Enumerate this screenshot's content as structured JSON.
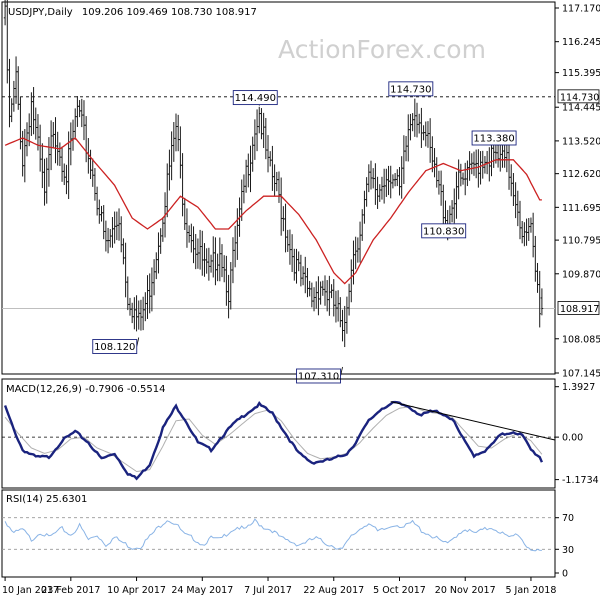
{
  "header": {
    "symbol_label": "USDJPY,Daily",
    "ohlc": "109.206 109.469 108.730 108.917"
  },
  "watermark": "ActionForex.com",
  "chart_data": {
    "type": "ohlc",
    "price_axis": {
      "ticks": [
        107.145,
        108.085,
        109.87,
        110.795,
        111.695,
        112.62,
        113.52,
        114.445,
        115.395,
        116.245,
        117.17
      ],
      "range": [
        107.145,
        117.17
      ]
    },
    "x_axis": {
      "labels": [
        "10 Jan 2017",
        "23 Feb 2017",
        "10 Apr 2017",
        "24 May 2017",
        "7 Jul 2017",
        "22 Aug 2017",
        "5 Oct 2017",
        "20 Nov 2017",
        "5 Jan 2018"
      ],
      "label_bars": [
        0,
        30,
        60,
        90,
        120,
        150,
        180,
        210,
        240
      ]
    },
    "horizontal_levels": [
      {
        "value": 114.73,
        "label": "114.730",
        "style": "dashed",
        "color": "#000000"
      },
      {
        "value": 108.917,
        "label": "108.917",
        "style": "solid",
        "color": "#bfbfbf"
      }
    ],
    "annotations": [
      {
        "label": "114.490",
        "value": 114.49,
        "bar": 116
      },
      {
        "label": "114.730",
        "value": 114.73,
        "bar": 187
      },
      {
        "label": "113.380",
        "value": 113.38,
        "bar": 225
      },
      {
        "label": "110.830",
        "value": 110.83,
        "bar": 202
      },
      {
        "label": "108.120",
        "value": 108.12,
        "bar": 61
      },
      {
        "label": "107.310",
        "value": 107.31,
        "bar": 154
      }
    ],
    "price_keypoints": [
      [
        0,
        116.9
      ],
      [
        2,
        114.0
      ],
      [
        5,
        115.2
      ],
      [
        8,
        113.0
      ],
      [
        12,
        114.6
      ],
      [
        18,
        112.0
      ],
      [
        22,
        113.9
      ],
      [
        28,
        112.6
      ],
      [
        33,
        114.4
      ],
      [
        40,
        112.6
      ],
      [
        46,
        110.6
      ],
      [
        52,
        111.4
      ],
      [
        56,
        109.3
      ],
      [
        61,
        108.5
      ],
      [
        65,
        109.2
      ],
      [
        70,
        110.8
      ],
      [
        74,
        112.4
      ],
      [
        78,
        113.9
      ],
      [
        82,
        111.5
      ],
      [
        87,
        110.6
      ],
      [
        93,
        109.8
      ],
      [
        98,
        110.6
      ],
      [
        102,
        109.4
      ],
      [
        106,
        111.0
      ],
      [
        110,
        112.6
      ],
      [
        114,
        113.9
      ],
      [
        116,
        114.3
      ],
      [
        120,
        112.8
      ],
      [
        124,
        112.2
      ],
      [
        130,
        110.6
      ],
      [
        135,
        109.7
      ],
      [
        140,
        109.2
      ],
      [
        144,
        109.6
      ],
      [
        148,
        109.2
      ],
      [
        152,
        108.8
      ],
      [
        154,
        108.0
      ],
      [
        158,
        110.2
      ],
      [
        162,
        111.1
      ],
      [
        166,
        112.4
      ],
      [
        170,
        112.1
      ],
      [
        175,
        112.7
      ],
      [
        180,
        112.1
      ],
      [
        184,
        113.8
      ],
      [
        187,
        114.4
      ],
      [
        191,
        113.9
      ],
      [
        196,
        112.6
      ],
      [
        200,
        111.7
      ],
      [
        202,
        111.3
      ],
      [
        206,
        112.3
      ],
      [
        210,
        112.4
      ],
      [
        215,
        112.9
      ],
      [
        220,
        113.1
      ],
      [
        225,
        113.0
      ],
      [
        229,
        112.9
      ],
      [
        233,
        112.0
      ],
      [
        237,
        110.8
      ],
      [
        240,
        111.0
      ],
      [
        242,
        109.9
      ],
      [
        244,
        109.0
      ]
    ],
    "ma_keypoints": [
      [
        0,
        113.4
      ],
      [
        8,
        113.6
      ],
      [
        15,
        113.4
      ],
      [
        25,
        113.3
      ],
      [
        32,
        113.6
      ],
      [
        40,
        113.0
      ],
      [
        50,
        112.3
      ],
      [
        58,
        111.4
      ],
      [
        65,
        111.1
      ],
      [
        72,
        111.4
      ],
      [
        80,
        112.0
      ],
      [
        88,
        111.7
      ],
      [
        96,
        111.1
      ],
      [
        102,
        111.1
      ],
      [
        110,
        111.6
      ],
      [
        118,
        112.0
      ],
      [
        126,
        112.0
      ],
      [
        134,
        111.5
      ],
      [
        142,
        110.8
      ],
      [
        150,
        109.9
      ],
      [
        155,
        109.6
      ],
      [
        160,
        109.9
      ],
      [
        168,
        110.8
      ],
      [
        176,
        111.4
      ],
      [
        184,
        112.1
      ],
      [
        192,
        112.7
      ],
      [
        200,
        112.9
      ],
      [
        208,
        112.7
      ],
      [
        216,
        112.8
      ],
      [
        224,
        113.0
      ],
      [
        232,
        113.0
      ],
      [
        238,
        112.6
      ],
      [
        244,
        111.9
      ]
    ],
    "macd": {
      "label": "MACD(12,26,9) -0.7906 -0.5514",
      "ticks": [
        1.3927,
        0.0,
        -1.1734
      ],
      "tick_labels": [
        "1.3927",
        "0.00",
        "-1.1734"
      ],
      "range": [
        -1.35,
        1.55
      ],
      "trendline": [
        [
          176,
          0.98
        ],
        [
          246,
          -0.08
        ]
      ],
      "macd_keypoints": [
        [
          0,
          0.85
        ],
        [
          4,
          0.2
        ],
        [
          8,
          -0.35
        ],
        [
          14,
          -0.55
        ],
        [
          20,
          -0.55
        ],
        [
          26,
          -0.1
        ],
        [
          32,
          0.15
        ],
        [
          38,
          -0.15
        ],
        [
          44,
          -0.6
        ],
        [
          50,
          -0.45
        ],
        [
          56,
          -1.0
        ],
        [
          60,
          -1.15
        ],
        [
          66,
          -0.75
        ],
        [
          72,
          0.25
        ],
        [
          78,
          0.85
        ],
        [
          82,
          0.5
        ],
        [
          88,
          -0.15
        ],
        [
          94,
          -0.35
        ],
        [
          98,
          -0.05
        ],
        [
          104,
          0.35
        ],
        [
          110,
          0.65
        ],
        [
          116,
          0.9
        ],
        [
          122,
          0.65
        ],
        [
          128,
          0.1
        ],
        [
          134,
          -0.45
        ],
        [
          140,
          -0.7
        ],
        [
          146,
          -0.65
        ],
        [
          150,
          -0.6
        ],
        [
          156,
          -0.45
        ],
        [
          160,
          -0.15
        ],
        [
          166,
          0.45
        ],
        [
          172,
          0.8
        ],
        [
          178,
          0.95
        ],
        [
          184,
          0.85
        ],
        [
          190,
          0.6
        ],
        [
          194,
          0.7
        ],
        [
          198,
          0.7
        ],
        [
          204,
          0.5
        ],
        [
          210,
          -0.15
        ],
        [
          214,
          -0.5
        ],
        [
          220,
          -0.35
        ],
        [
          226,
          0.05
        ],
        [
          232,
          0.15
        ],
        [
          236,
          0.05
        ],
        [
          240,
          -0.35
        ],
        [
          244,
          -0.55
        ],
        [
          246,
          -0.8
        ]
      ],
      "signal_keypoints": [
        [
          0,
          0.55
        ],
        [
          6,
          0.1
        ],
        [
          12,
          -0.3
        ],
        [
          18,
          -0.45
        ],
        [
          24,
          -0.35
        ],
        [
          30,
          -0.05
        ],
        [
          36,
          0.0
        ],
        [
          42,
          -0.3
        ],
        [
          48,
          -0.45
        ],
        [
          54,
          -0.7
        ],
        [
          60,
          -0.95
        ],
        [
          66,
          -0.9
        ],
        [
          72,
          -0.25
        ],
        [
          78,
          0.45
        ],
        [
          84,
          0.5
        ],
        [
          90,
          0.05
        ],
        [
          96,
          -0.2
        ],
        [
          102,
          0.05
        ],
        [
          108,
          0.35
        ],
        [
          114,
          0.65
        ],
        [
          120,
          0.75
        ],
        [
          126,
          0.45
        ],
        [
          132,
          -0.05
        ],
        [
          138,
          -0.45
        ],
        [
          144,
          -0.6
        ],
        [
          150,
          -0.55
        ],
        [
          156,
          -0.45
        ],
        [
          162,
          -0.15
        ],
        [
          168,
          0.25
        ],
        [
          174,
          0.6
        ],
        [
          180,
          0.8
        ],
        [
          186,
          0.85
        ],
        [
          192,
          0.7
        ],
        [
          198,
          0.65
        ],
        [
          204,
          0.55
        ],
        [
          210,
          0.15
        ],
        [
          216,
          -0.25
        ],
        [
          222,
          -0.3
        ],
        [
          228,
          -0.05
        ],
        [
          234,
          0.1
        ],
        [
          240,
          -0.1
        ],
        [
          246,
          -0.55
        ]
      ]
    },
    "rsi": {
      "label": "RSI(14) 25.6301",
      "ticks": [
        70,
        30,
        0
      ],
      "range": [
        0,
        100
      ],
      "keypoints": [
        [
          0,
          66
        ],
        [
          4,
          50
        ],
        [
          8,
          55
        ],
        [
          12,
          42
        ],
        [
          16,
          52
        ],
        [
          20,
          45
        ],
        [
          26,
          56
        ],
        [
          30,
          48
        ],
        [
          34,
          60
        ],
        [
          38,
          42
        ],
        [
          42,
          48
        ],
        [
          46,
          36
        ],
        [
          50,
          45
        ],
        [
          54,
          38
        ],
        [
          58,
          32
        ],
        [
          62,
          34
        ],
        [
          66,
          46
        ],
        [
          70,
          58
        ],
        [
          74,
          68
        ],
        [
          78,
          62
        ],
        [
          82,
          48
        ],
        [
          86,
          44
        ],
        [
          90,
          36
        ],
        [
          94,
          44
        ],
        [
          98,
          42
        ],
        [
          102,
          52
        ],
        [
          106,
          58
        ],
        [
          110,
          55
        ],
        [
          114,
          66
        ],
        [
          118,
          58
        ],
        [
          122,
          54
        ],
        [
          126,
          44
        ],
        [
          130,
          40
        ],
        [
          134,
          36
        ],
        [
          138,
          40
        ],
        [
          142,
          44
        ],
        [
          146,
          38
        ],
        [
          150,
          34
        ],
        [
          154,
          30
        ],
        [
          158,
          46
        ],
        [
          162,
          56
        ],
        [
          166,
          64
        ],
        [
          170,
          52
        ],
        [
          174,
          56
        ],
        [
          178,
          62
        ],
        [
          182,
          58
        ],
        [
          186,
          64
        ],
        [
          190,
          54
        ],
        [
          194,
          48
        ],
        [
          198,
          42
        ],
        [
          202,
          36
        ],
        [
          206,
          48
        ],
        [
          210,
          56
        ],
        [
          214,
          50
        ],
        [
          218,
          54
        ],
        [
          222,
          58
        ],
        [
          226,
          52
        ],
        [
          230,
          44
        ],
        [
          234,
          50
        ],
        [
          238,
          34
        ],
        [
          242,
          28
        ],
        [
          244,
          26
        ]
      ]
    }
  },
  "colors": {
    "background": "#ffffff",
    "price_bars": "#1a1a1a",
    "moving_average": "#cc2222",
    "macd_line": "#1a237e",
    "signal_line": "#b0b0b0",
    "rsi_line": "#8ab4e6",
    "axis": "#000000",
    "grid_dashed": "#000000",
    "price_level": "#bfbfbf"
  }
}
